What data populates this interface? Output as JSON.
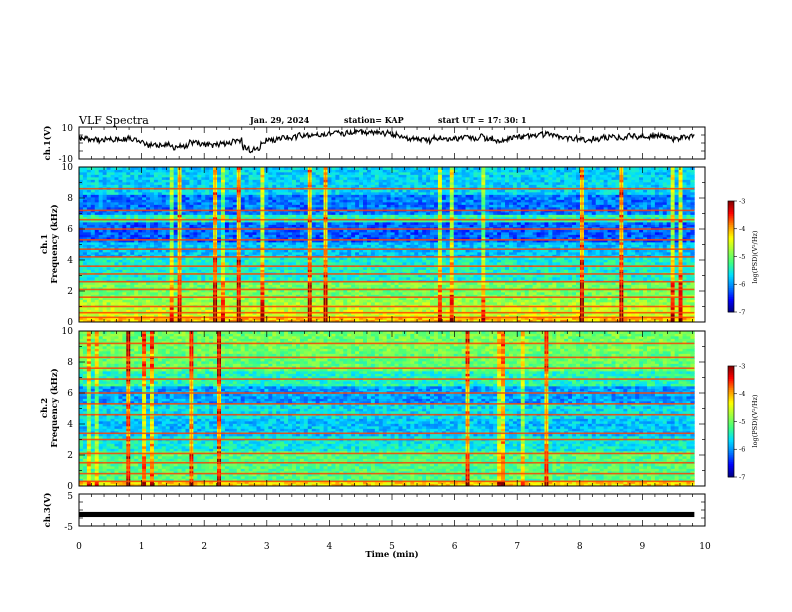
{
  "header": {
    "title": "VLF Spectra",
    "date": "Jan. 29, 2024",
    "station": "station= KAP",
    "start_ut": "start UT =  17: 30: 1"
  },
  "chart_data": [
    {
      "type": "line",
      "name": "ch1-waveform",
      "ylabel": "ch.1(V)",
      "ylim": [
        -10,
        10
      ],
      "yticks": [
        "10",
        "-10"
      ],
      "xlim": [
        0,
        10
      ],
      "data_end_min": 9.83
    },
    {
      "type": "heatmap",
      "name": "ch1-spectrogram",
      "ylabel": [
        "ch.1",
        "Frequency (kHz)"
      ],
      "ylim": [
        0,
        10
      ],
      "yticks": [
        "0",
        "2",
        "4",
        "6",
        "8",
        "10"
      ],
      "colorbar": {
        "label": "log(PSD)(V²/Hz)",
        "ticks": [
          "-3",
          "-4",
          "-5",
          "-6",
          "-7"
        ],
        "range": [
          -7,
          -3
        ]
      },
      "persistent_lines_khz": [
        0.3,
        0.6,
        1.0,
        1.6,
        2.1,
        2.6,
        3.1,
        3.6,
        4.2,
        4.7,
        5.3,
        6.0,
        6.6,
        7.2,
        8.6
      ]
    },
    {
      "type": "heatmap",
      "name": "ch2-spectrogram",
      "ylabel": [
        "ch.2",
        "Frequency (kHz)"
      ],
      "ylim": [
        0,
        10
      ],
      "yticks": [
        "0",
        "2",
        "4",
        "6",
        "8",
        "10"
      ],
      "colorbar": {
        "label": "log(PSD)(V²/Hz)",
        "ticks": [
          "-3",
          "-4",
          "-5",
          "-6",
          "-7"
        ],
        "range": [
          -7,
          -3
        ]
      },
      "persistent_lines_khz": [
        0.3,
        0.8,
        1.5,
        2.1,
        3.0,
        3.4,
        4.6,
        5.3,
        6.0,
        6.9,
        7.6,
        8.3,
        9.2
      ]
    },
    {
      "type": "line",
      "name": "ch3-waveform",
      "ylabel": "ch.3(V)",
      "ylim": [
        -5,
        5
      ],
      "yticks": [
        "5",
        "-5"
      ],
      "xlim": [
        0,
        10
      ],
      "xlabel": "Time (min)",
      "xticks": [
        "0",
        "1",
        "2",
        "3",
        "4",
        "5",
        "6",
        "7",
        "8",
        "9",
        "10"
      ]
    }
  ],
  "colors": {
    "axis": "#000000",
    "spectrogram_scale": [
      "#00007f",
      "#0000ff",
      "#0080ff",
      "#00e0ff",
      "#40ff80",
      "#a0ff40",
      "#ffff00",
      "#ff9000",
      "#ff0000",
      "#7f0000"
    ]
  }
}
